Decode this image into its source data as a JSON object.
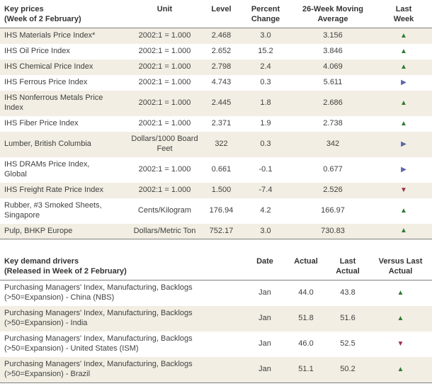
{
  "colors": {
    "up": "#2e7d32",
    "down": "#9b2d52",
    "flat": "#5a66a8",
    "stripe": "#f2eee3"
  },
  "prices_table": {
    "header": {
      "title_line1": "Key prices",
      "title_line2": "(Week of 2 February)",
      "unit": "Unit",
      "level": "Level",
      "percent_line1": "Percent",
      "percent_line2": "Change",
      "avg_line1": "26-Week Moving",
      "avg_line2": "Average",
      "last_line1": "Last",
      "last_line2": "Week"
    },
    "rows": [
      {
        "name": "IHS Materials Price Index*",
        "unit": "2002:1 = 1.000",
        "level": "2.468",
        "change": "3.0",
        "avg": "3.156",
        "direction": "up"
      },
      {
        "name": "IHS Oil Price Index",
        "unit": "2002:1 = 1.000",
        "level": "2.652",
        "change": "15.2",
        "avg": "3.846",
        "direction": "up"
      },
      {
        "name": "IHS Chemical Price Index",
        "unit": "2002:1 = 1.000",
        "level": "2.798",
        "change": "2.4",
        "avg": "4.069",
        "direction": "up"
      },
      {
        "name": "IHS Ferrous Price Index",
        "unit": "2002:1 = 1.000",
        "level": "4.743",
        "change": "0.3",
        "avg": "5.611",
        "direction": "flat"
      },
      {
        "name": "IHS Nonferrous Metals Price\nIndex",
        "unit": "2002:1 = 1.000",
        "level": "2.445",
        "change": "1.8",
        "avg": "2.686",
        "direction": "up"
      },
      {
        "name": "IHS Fiber Price Index",
        "unit": "2002:1 = 1.000",
        "level": "2.371",
        "change": "1.9",
        "avg": "2.738",
        "direction": "up"
      },
      {
        "name": "Lumber, British Columbia",
        "unit": "Dollars/1000 Board\nFeet",
        "level": "322",
        "change": "0.3",
        "avg": "342",
        "direction": "flat"
      },
      {
        "name": "IHS DRAMs Price Index,\nGlobal",
        "unit": "2002:1 = 1.000",
        "level": "0.661",
        "change": "-0.1",
        "avg": "0.677",
        "direction": "flat"
      },
      {
        "name": "IHS Freight Rate Price Index",
        "unit": "2002:1 = 1.000",
        "level": "1.500",
        "change": "-7.4",
        "avg": "2.526",
        "direction": "down"
      },
      {
        "name": "Rubber, #3 Smoked Sheets,\nSingapore",
        "unit": "Cents/Kilogram",
        "level": "176.94",
        "change": "4.2",
        "avg": "166.97",
        "direction": "up"
      },
      {
        "name": "Pulp, BHKP Europe",
        "unit": "Dollars/Metric Ton",
        "level": "752.17",
        "change": "3.0",
        "avg": "730.83",
        "direction": "up"
      }
    ]
  },
  "demand_table": {
    "header": {
      "title_line1": "Key demand drivers",
      "title_line2": "(Released in Week of 2 February)",
      "date": "Date",
      "actual": "Actual",
      "last_line1": "Last",
      "last_line2": "Actual",
      "versus_line1": "Versus Last",
      "versus_line2": "Actual"
    },
    "rows": [
      {
        "name": "Purchasing Managers' Index, Manufacturing, Backlogs\n(>50=Expansion) - China (NBS)",
        "date": "Jan",
        "actual": "44.0",
        "last_actual": "43.8",
        "direction": "up"
      },
      {
        "name": "Purchasing Managers' Index, Manufacturing, Backlogs\n(>50=Expansion) - India",
        "date": "Jan",
        "actual": "51.8",
        "last_actual": "51.6",
        "direction": "up"
      },
      {
        "name": "Purchasing Managers' Index, Manufacturing, Backlogs\n(>50=Expansion) - United States (ISM)",
        "date": "Jan",
        "actual": "46.0",
        "last_actual": "52.5",
        "direction": "down"
      },
      {
        "name": "Purchasing Managers' Index, Manufacturing, Backlogs\n(>50=Expansion) - Brazil",
        "date": "Jan",
        "actual": "51.1",
        "last_actual": "50.2",
        "direction": "up"
      }
    ]
  }
}
